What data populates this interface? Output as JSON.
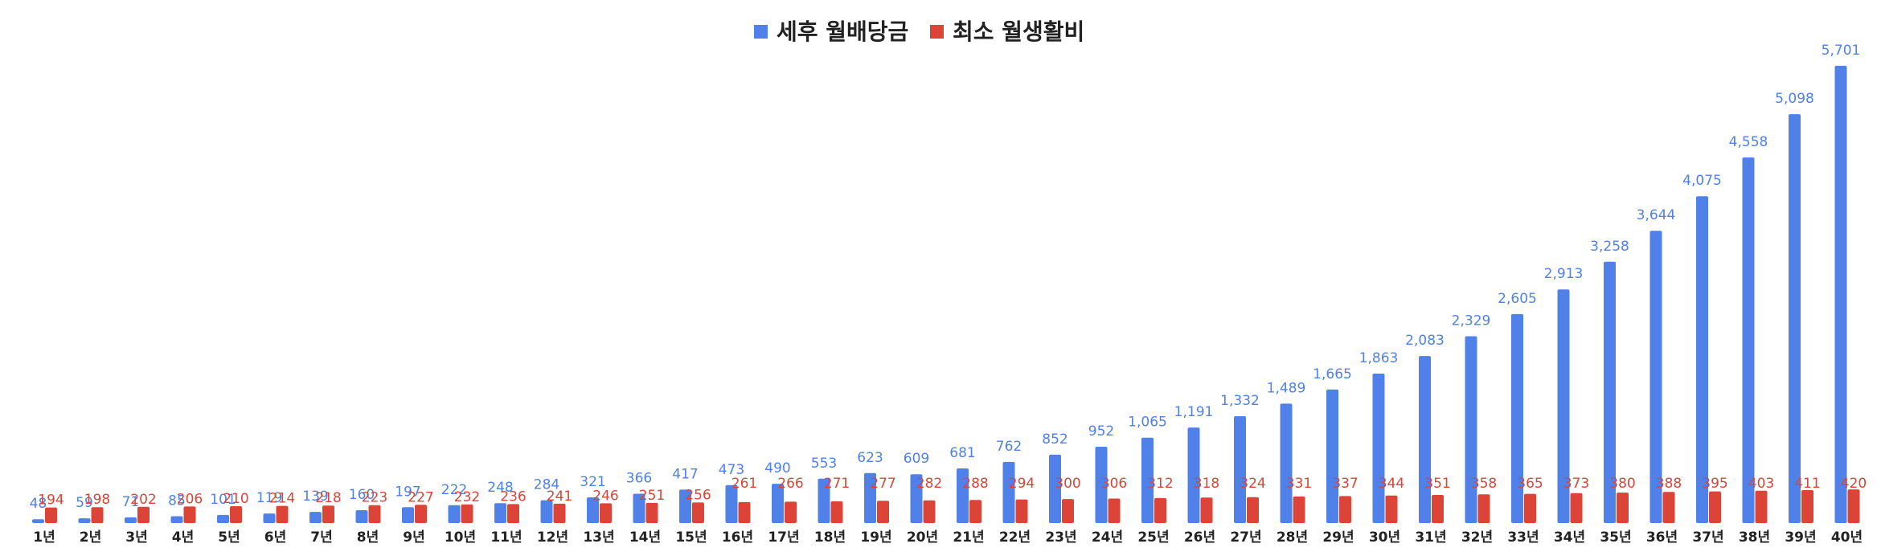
{
  "chart_data": {
    "type": "bar",
    "legend_position": "top-center",
    "grid": false,
    "ylim": [
      0,
      5900
    ],
    "categories": [
      "1년",
      "2년",
      "3년",
      "4년",
      "5년",
      "6년",
      "7년",
      "8년",
      "9년",
      "10년",
      "11년",
      "12년",
      "13년",
      "14년",
      "15년",
      "16년",
      "17년",
      "18년",
      "19년",
      "20년",
      "21년",
      "22년",
      "23년",
      "24년",
      "25년",
      "26년",
      "27년",
      "28년",
      "29년",
      "30년",
      "31년",
      "32년",
      "33년",
      "34년",
      "35년",
      "36년",
      "37년",
      "38년",
      "39년",
      "40년"
    ],
    "series": [
      {
        "name": "세후 월배당금",
        "color": "#4f81e8",
        "values": [
          48,
          59,
          71,
          85,
          101,
          119,
          139,
          160,
          197,
          222,
          248,
          284,
          321,
          366,
          417,
          473,
          490,
          553,
          623,
          609,
          681,
          762,
          852,
          952,
          1065,
          1191,
          1332,
          1489,
          1665,
          1863,
          2083,
          2329,
          2605,
          2913,
          3258,
          3644,
          4075,
          4558,
          5098,
          5701
        ]
      },
      {
        "name": "최소 월생활비",
        "color": "#db4437",
        "values": [
          194,
          198,
          202,
          206,
          210,
          214,
          218,
          223,
          227,
          232,
          236,
          241,
          246,
          251,
          256,
          261,
          266,
          271,
          277,
          282,
          288,
          294,
          300,
          306,
          312,
          318,
          324,
          331,
          337,
          344,
          351,
          358,
          365,
          373,
          380,
          388,
          395,
          403,
          411,
          420
        ]
      }
    ]
  }
}
